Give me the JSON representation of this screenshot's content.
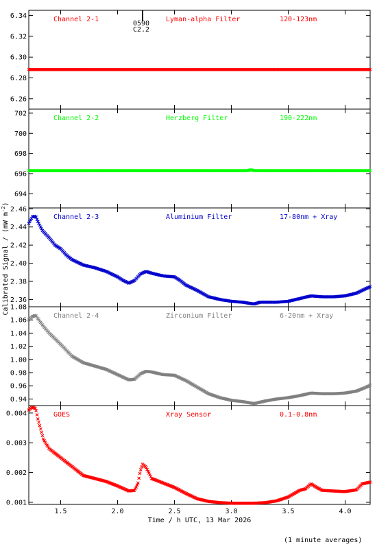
{
  "chart_data": {
    "type": "scatter",
    "layout": "stacked panels, shared x axis",
    "x_axis": {
      "label": "Time / h UTC, 13 Mar 2026",
      "range": [
        1.22,
        4.22
      ],
      "ticks": [
        1.5,
        2.0,
        2.5,
        3.0,
        3.5,
        4.0
      ],
      "tick_labels": [
        "1.5",
        "2.0",
        "2.5",
        "3.0",
        "3.5",
        "4.0"
      ]
    },
    "shared_ylabel": "Calibrated Signal / (mW m",
    "shared_ylabel_sup": "-2",
    "shared_ylabel_close": ")",
    "footnote": "(1 minute averages)",
    "event_marker": {
      "x": 2.22,
      "labels": [
        "0590",
        "C2.2"
      ]
    },
    "panels": [
      {
        "channel": "Channel 2-1",
        "filter": "Lyman-alpha Filter",
        "band": "120-123nm",
        "color": "#ff0000",
        "ylim": [
          6.25,
          6.345
        ],
        "yticks": [
          6.26,
          6.28,
          6.3,
          6.32,
          6.34
        ],
        "ytick_labels": [
          "6.26",
          "6.28",
          "6.30",
          "6.32",
          "6.34"
        ],
        "series": [
          [
            1.22,
            6.288
          ],
          [
            4.22,
            6.288
          ]
        ]
      },
      {
        "channel": "Channel 2-2",
        "filter": "Herzberg Filter",
        "band": "190-222nm",
        "color": "#00ff00",
        "ylim": [
          692.6,
          702.4
        ],
        "yticks": [
          694,
          696,
          698,
          700,
          702
        ],
        "ytick_labels": [
          "694",
          "696",
          "698",
          "700",
          "702"
        ],
        "series": [
          [
            1.22,
            696.3
          ],
          [
            3.15,
            696.3
          ],
          [
            3.17,
            696.4
          ],
          [
            3.2,
            696.3
          ],
          [
            4.22,
            696.3
          ]
        ]
      },
      {
        "channel": "Channel 2-3",
        "filter": "Aluminium Filter",
        "band": "17-80nm + Xray",
        "color": "#0000cc",
        "ylim": [
          2.352,
          2.461
        ],
        "yticks": [
          2.36,
          2.38,
          2.4,
          2.42,
          2.44,
          2.46
        ],
        "ytick_labels": [
          "2.36",
          "2.38",
          "2.40",
          "2.42",
          "2.44",
          "2.46"
        ],
        "series": [
          [
            1.22,
            2.444
          ],
          [
            1.25,
            2.451
          ],
          [
            1.28,
            2.452
          ],
          [
            1.3,
            2.446
          ],
          [
            1.34,
            2.436
          ],
          [
            1.4,
            2.428
          ],
          [
            1.45,
            2.42
          ],
          [
            1.5,
            2.416
          ],
          [
            1.55,
            2.409
          ],
          [
            1.6,
            2.404
          ],
          [
            1.7,
            2.398
          ],
          [
            1.8,
            2.395
          ],
          [
            1.9,
            2.391
          ],
          [
            2.0,
            2.385
          ],
          [
            2.05,
            2.381
          ],
          [
            2.1,
            2.378
          ],
          [
            2.15,
            2.381
          ],
          [
            2.2,
            2.388
          ],
          [
            2.25,
            2.391
          ],
          [
            2.3,
            2.389
          ],
          [
            2.4,
            2.386
          ],
          [
            2.5,
            2.385
          ],
          [
            2.55,
            2.381
          ],
          [
            2.6,
            2.376
          ],
          [
            2.7,
            2.37
          ],
          [
            2.8,
            2.363
          ],
          [
            2.9,
            2.36
          ],
          [
            3.0,
            2.358
          ],
          [
            3.1,
            2.357
          ],
          [
            3.2,
            2.355
          ],
          [
            3.25,
            2.357
          ],
          [
            3.3,
            2.357
          ],
          [
            3.4,
            2.357
          ],
          [
            3.5,
            2.358
          ],
          [
            3.6,
            2.361
          ],
          [
            3.7,
            2.364
          ],
          [
            3.8,
            2.363
          ],
          [
            3.9,
            2.363
          ],
          [
            4.0,
            2.364
          ],
          [
            4.1,
            2.367
          ],
          [
            4.2,
            2.373
          ],
          [
            4.22,
            2.374
          ]
        ]
      },
      {
        "channel": "Channel 2-4",
        "filter": "Zirconium Filter",
        "band": "6-20nm + Xray",
        "color": "#808080",
        "ylim": [
          0.93,
          1.08
        ],
        "yticks": [
          0.94,
          0.96,
          0.98,
          1.0,
          1.02,
          1.04,
          1.06,
          1.08
        ],
        "ytick_labels": [
          "0.94",
          "0.96",
          "0.98",
          "1.00",
          "1.02",
          "1.04",
          "1.06",
          "1.08"
        ],
        "series": [
          [
            1.22,
            1.06
          ],
          [
            1.25,
            1.065
          ],
          [
            1.28,
            1.067
          ],
          [
            1.3,
            1.062
          ],
          [
            1.35,
            1.05
          ],
          [
            1.4,
            1.04
          ],
          [
            1.5,
            1.023
          ],
          [
            1.6,
            1.005
          ],
          [
            1.7,
            0.995
          ],
          [
            1.8,
            0.99
          ],
          [
            1.9,
            0.985
          ],
          [
            2.0,
            0.977
          ],
          [
            2.1,
            0.969
          ],
          [
            2.15,
            0.97
          ],
          [
            2.2,
            0.978
          ],
          [
            2.25,
            0.982
          ],
          [
            2.3,
            0.981
          ],
          [
            2.4,
            0.977
          ],
          [
            2.5,
            0.976
          ],
          [
            2.6,
            0.968
          ],
          [
            2.7,
            0.958
          ],
          [
            2.8,
            0.948
          ],
          [
            2.9,
            0.942
          ],
          [
            3.0,
            0.938
          ],
          [
            3.1,
            0.936
          ],
          [
            3.2,
            0.933
          ],
          [
            3.3,
            0.937
          ],
          [
            3.4,
            0.94
          ],
          [
            3.5,
            0.942
          ],
          [
            3.6,
            0.945
          ],
          [
            3.7,
            0.949
          ],
          [
            3.8,
            0.948
          ],
          [
            3.9,
            0.948
          ],
          [
            4.0,
            0.949
          ],
          [
            4.1,
            0.952
          ],
          [
            4.2,
            0.959
          ],
          [
            4.22,
            0.961
          ]
        ]
      },
      {
        "channel": "GOES",
        "filter": "Xray Sensor",
        "band": "0.1-0.8nm",
        "color": "#ff0000",
        "ylim": [
          0.00093,
          0.00425
        ],
        "yticks": [
          0.001,
          0.002,
          0.003,
          0.004
        ],
        "ytick_labels": [
          "0.001",
          "0.002",
          "0.003",
          "0.004"
        ],
        "series": [
          [
            1.22,
            0.0041
          ],
          [
            1.25,
            0.0042
          ],
          [
            1.28,
            0.00415
          ],
          [
            1.3,
            0.0038
          ],
          [
            1.35,
            0.0031
          ],
          [
            1.4,
            0.0028
          ],
          [
            1.5,
            0.0025
          ],
          [
            1.6,
            0.0022
          ],
          [
            1.7,
            0.0019
          ],
          [
            1.8,
            0.0018
          ],
          [
            1.9,
            0.0017
          ],
          [
            2.0,
            0.00155
          ],
          [
            2.1,
            0.00138
          ],
          [
            2.15,
            0.0014
          ],
          [
            2.18,
            0.00165
          ],
          [
            2.2,
            0.00205
          ],
          [
            2.22,
            0.00228
          ],
          [
            2.25,
            0.00218
          ],
          [
            2.3,
            0.0018
          ],
          [
            2.4,
            0.00165
          ],
          [
            2.5,
            0.0015
          ],
          [
            2.6,
            0.0013
          ],
          [
            2.7,
            0.00112
          ],
          [
            2.8,
            0.00103
          ],
          [
            2.9,
            0.00099
          ],
          [
            3.0,
            0.00097
          ],
          [
            3.1,
            0.00097
          ],
          [
            3.2,
            0.00097
          ],
          [
            3.3,
            0.00099
          ],
          [
            3.4,
            0.00105
          ],
          [
            3.5,
            0.00118
          ],
          [
            3.6,
            0.0014
          ],
          [
            3.65,
            0.00145
          ],
          [
            3.7,
            0.00162
          ],
          [
            3.75,
            0.0015
          ],
          [
            3.8,
            0.0014
          ],
          [
            3.9,
            0.00138
          ],
          [
            4.0,
            0.00136
          ],
          [
            4.1,
            0.00142
          ],
          [
            4.15,
            0.00162
          ],
          [
            4.22,
            0.00168
          ]
        ]
      }
    ]
  }
}
